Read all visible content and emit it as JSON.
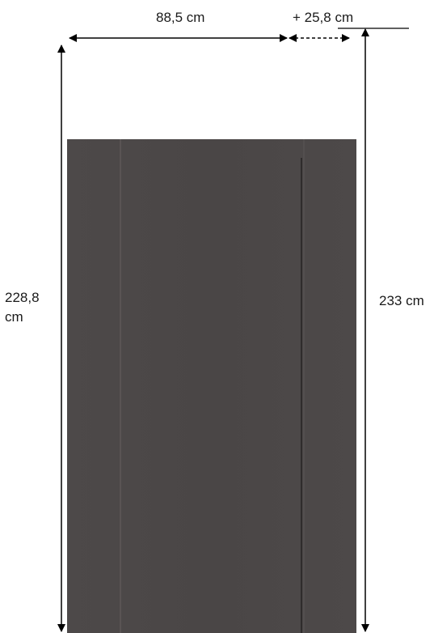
{
  "dimensions": {
    "width_label": "88,5 cm",
    "extension_label": "+ 25,8 cm",
    "height_left_label": "228,8 cm",
    "height_right_label": "233 cm"
  },
  "colors": {
    "panel": "#4b4747",
    "panel_edge": "#5a5656",
    "arrow": "#000000",
    "text": "#1a1a1a"
  }
}
